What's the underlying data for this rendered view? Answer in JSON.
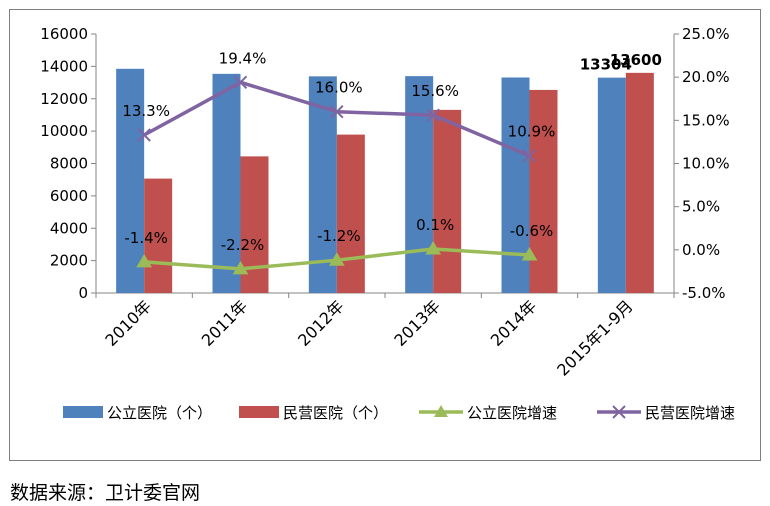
{
  "chart_data": {
    "type": "bar",
    "categories": [
      "2010年",
      "2011年",
      "2012年",
      "2013年",
      "2014年",
      "2015年1-9月"
    ],
    "bar_series": [
      {
        "name": "公立医院（个）",
        "values": [
          13850,
          13539,
          13384,
          13396,
          13314,
          13304
        ],
        "color": "#4f81bd"
      },
      {
        "name": "民营医院（个）",
        "values": [
          7068,
          8440,
          9786,
          11313,
          12546,
          13600
        ],
        "color": "#c0504d"
      }
    ],
    "line_series": [
      {
        "name": "公立医院增速",
        "values": [
          -1.4,
          -2.2,
          -1.2,
          0.1,
          -0.6
        ],
        "labels": [
          "-1.4%",
          "-2.2%",
          "-1.2%",
          "0.1%",
          "-0.6%"
        ],
        "color": "#9bbb59",
        "marker": "triangle"
      },
      {
        "name": "民营医院增速",
        "values": [
          13.3,
          19.4,
          16.0,
          15.6,
          10.9
        ],
        "labels": [
          "13.3%",
          "19.4%",
          "16.0%",
          "15.6%",
          "10.9%"
        ],
        "color": "#8064a2",
        "marker": "x"
      }
    ],
    "bar_labels": [
      {
        "category_index": 5,
        "series_index": 0,
        "text": "13304"
      },
      {
        "category_index": 5,
        "series_index": 1,
        "text": "13600"
      }
    ],
    "y_left": {
      "min": 0,
      "max": 16000,
      "step": 2000,
      "tick_labels": [
        "0",
        "2000",
        "4000",
        "6000",
        "8000",
        "10000",
        "12000",
        "14000",
        "16000"
      ]
    },
    "y_right": {
      "min": -5,
      "max": 25,
      "step": 5,
      "tick_labels": [
        "-5.0%",
        "0.0%",
        "5.0%",
        "10.0%",
        "15.0%",
        "20.0%",
        "25.0%"
      ]
    },
    "legend_position": "bottom",
    "grid": false
  },
  "source_note": "数据来源：卫计委官网"
}
